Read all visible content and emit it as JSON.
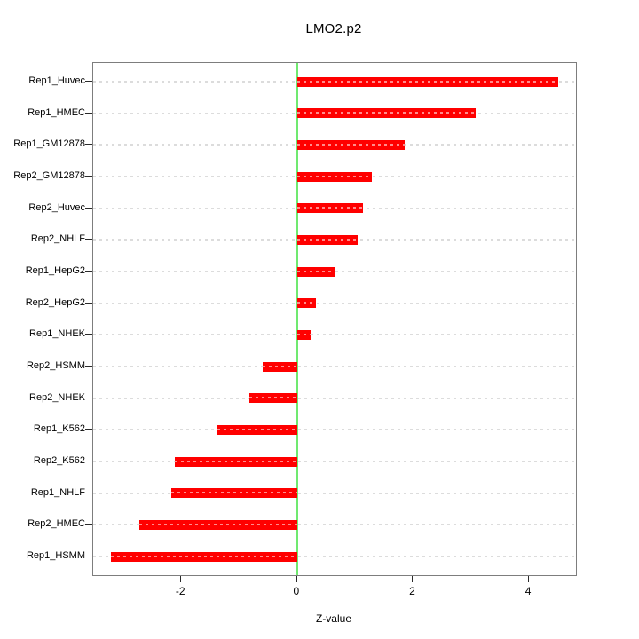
{
  "title": "LMO2.p2",
  "xlabel": "Z-value",
  "chart_data": {
    "type": "bar",
    "orientation": "horizontal",
    "title": "LMO2.p2",
    "xlabel": "Z-value",
    "ylabel": "",
    "categories": [
      "Rep1_Huvec",
      "Rep1_HMEC",
      "Rep1_GM12878",
      "Rep2_GM12878",
      "Rep2_Huvec",
      "Rep2_NHLF",
      "Rep1_HepG2",
      "Rep2_HepG2",
      "Rep1_NHEK",
      "Rep2_HSMM",
      "Rep2_NHEK",
      "Rep1_K562",
      "Rep2_K562",
      "Rep1_NHLF",
      "Rep2_HMEC",
      "Rep1_HSMM"
    ],
    "values": [
      4.51,
      3.08,
      1.85,
      1.29,
      1.13,
      1.04,
      0.64,
      0.32,
      0.23,
      -0.6,
      -0.83,
      -1.37,
      -2.11,
      -2.18,
      -2.73,
      -3.21
    ],
    "xlim": [
      -3.52,
      4.81
    ],
    "x_ticks": [
      -2,
      0,
      2,
      4
    ],
    "grid": true,
    "zero_reference_line": 0,
    "colors": {
      "bar": "#ff0000",
      "zero_line": "#70e970",
      "grid": "#dcdcdc",
      "box": "#7d7d7d",
      "text": "#000000"
    }
  }
}
